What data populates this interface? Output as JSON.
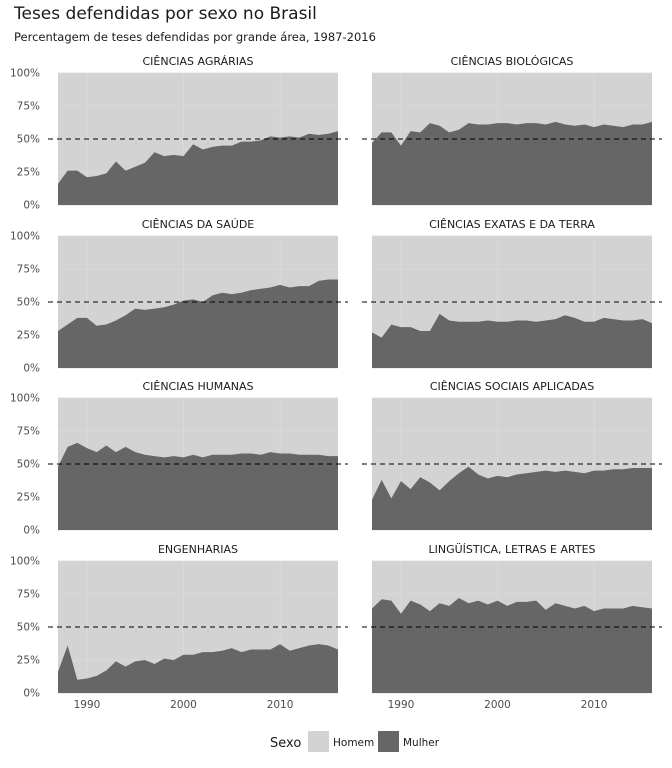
{
  "chart_data": {
    "type": "area",
    "title": "Teses defendidas por sexo no Brasil",
    "subtitle": "Percentagem de teses defendidas por grande área, 1987-2016",
    "stacked": true,
    "reference_line": {
      "y": 0.5,
      "style": "dashed",
      "color": "#000000"
    },
    "xlim": [
      1987,
      2016
    ],
    "ylim": [
      0,
      1
    ],
    "x_ticks": [
      1990,
      2000,
      2010
    ],
    "y_ticks": [
      0,
      0.25,
      0.5,
      0.75,
      1
    ],
    "y_tick_labels": [
      "0%",
      "25%",
      "50%",
      "75%",
      "100%"
    ],
    "grid": true,
    "legend": {
      "title": "Sexo",
      "position": "bottom",
      "entries": [
        {
          "name": "Homem",
          "color": "#d3d3d3"
        },
        {
          "name": "Mulher",
          "color": "#666666"
        }
      ]
    },
    "x": [
      1987,
      1988,
      1989,
      1990,
      1991,
      1992,
      1993,
      1994,
      1995,
      1996,
      1997,
      1998,
      1999,
      2000,
      2001,
      2002,
      2003,
      2004,
      2005,
      2006,
      2007,
      2008,
      2009,
      2010,
      2011,
      2012,
      2013,
      2014,
      2015,
      2016
    ],
    "facets": [
      {
        "name": "CIÊNCIAS AGRÁRIAS",
        "mulher": [
          0.16,
          0.26,
          0.26,
          0.21,
          0.22,
          0.24,
          0.33,
          0.26,
          0.29,
          0.32,
          0.4,
          0.37,
          0.38,
          0.37,
          0.46,
          0.42,
          0.44,
          0.45,
          0.45,
          0.48,
          0.48,
          0.49,
          0.52,
          0.51,
          0.52,
          0.51,
          0.54,
          0.53,
          0.54,
          0.56
        ]
      },
      {
        "name": "CIÊNCIAS BIOLÓGICAS",
        "mulher": [
          0.47,
          0.55,
          0.55,
          0.45,
          0.56,
          0.55,
          0.62,
          0.6,
          0.55,
          0.57,
          0.62,
          0.61,
          0.61,
          0.62,
          0.62,
          0.61,
          0.62,
          0.62,
          0.61,
          0.63,
          0.61,
          0.6,
          0.61,
          0.59,
          0.61,
          0.6,
          0.59,
          0.61,
          0.61,
          0.63
        ]
      },
      {
        "name": "CIÊNCIAS DA SAÚDE",
        "mulher": [
          0.28,
          0.33,
          0.38,
          0.38,
          0.32,
          0.33,
          0.36,
          0.4,
          0.45,
          0.44,
          0.45,
          0.46,
          0.48,
          0.51,
          0.52,
          0.5,
          0.55,
          0.57,
          0.56,
          0.57,
          0.59,
          0.6,
          0.61,
          0.63,
          0.61,
          0.62,
          0.62,
          0.66,
          0.67,
          0.67
        ]
      },
      {
        "name": "CIÊNCIAS EXATAS E DA TERRA",
        "mulher": [
          0.27,
          0.23,
          0.33,
          0.31,
          0.31,
          0.28,
          0.28,
          0.41,
          0.36,
          0.35,
          0.35,
          0.35,
          0.36,
          0.35,
          0.35,
          0.36,
          0.36,
          0.35,
          0.36,
          0.37,
          0.4,
          0.38,
          0.35,
          0.35,
          0.38,
          0.37,
          0.36,
          0.36,
          0.37,
          0.34
        ]
      },
      {
        "name": "CIÊNCIAS HUMANAS",
        "mulher": [
          0.48,
          0.63,
          0.66,
          0.62,
          0.59,
          0.64,
          0.59,
          0.63,
          0.59,
          0.57,
          0.56,
          0.55,
          0.56,
          0.55,
          0.57,
          0.55,
          0.57,
          0.57,
          0.57,
          0.58,
          0.58,
          0.57,
          0.59,
          0.58,
          0.58,
          0.57,
          0.57,
          0.57,
          0.56,
          0.56
        ]
      },
      {
        "name": "CIÊNCIAS SOCIAIS APLICADAS",
        "mulher": [
          0.23,
          0.38,
          0.24,
          0.37,
          0.31,
          0.4,
          0.36,
          0.3,
          0.37,
          0.43,
          0.48,
          0.42,
          0.39,
          0.41,
          0.4,
          0.42,
          0.43,
          0.44,
          0.45,
          0.44,
          0.45,
          0.44,
          0.43,
          0.45,
          0.45,
          0.46,
          0.46,
          0.47,
          0.47,
          0.47
        ]
      },
      {
        "name": "ENGENHARIAS",
        "mulher": [
          0.16,
          0.36,
          0.1,
          0.11,
          0.13,
          0.17,
          0.24,
          0.2,
          0.24,
          0.25,
          0.22,
          0.26,
          0.25,
          0.29,
          0.29,
          0.31,
          0.31,
          0.32,
          0.34,
          0.31,
          0.33,
          0.33,
          0.33,
          0.37,
          0.32,
          0.34,
          0.36,
          0.37,
          0.36,
          0.33
        ]
      },
      {
        "name": "LINGÜÍSTICA, LETRAS E ARTES",
        "mulher": [
          0.64,
          0.71,
          0.7,
          0.6,
          0.7,
          0.67,
          0.62,
          0.68,
          0.66,
          0.72,
          0.68,
          0.7,
          0.67,
          0.7,
          0.66,
          0.69,
          0.69,
          0.7,
          0.63,
          0.68,
          0.66,
          0.64,
          0.66,
          0.62,
          0.64,
          0.64,
          0.64,
          0.66,
          0.65,
          0.64
        ]
      }
    ]
  }
}
